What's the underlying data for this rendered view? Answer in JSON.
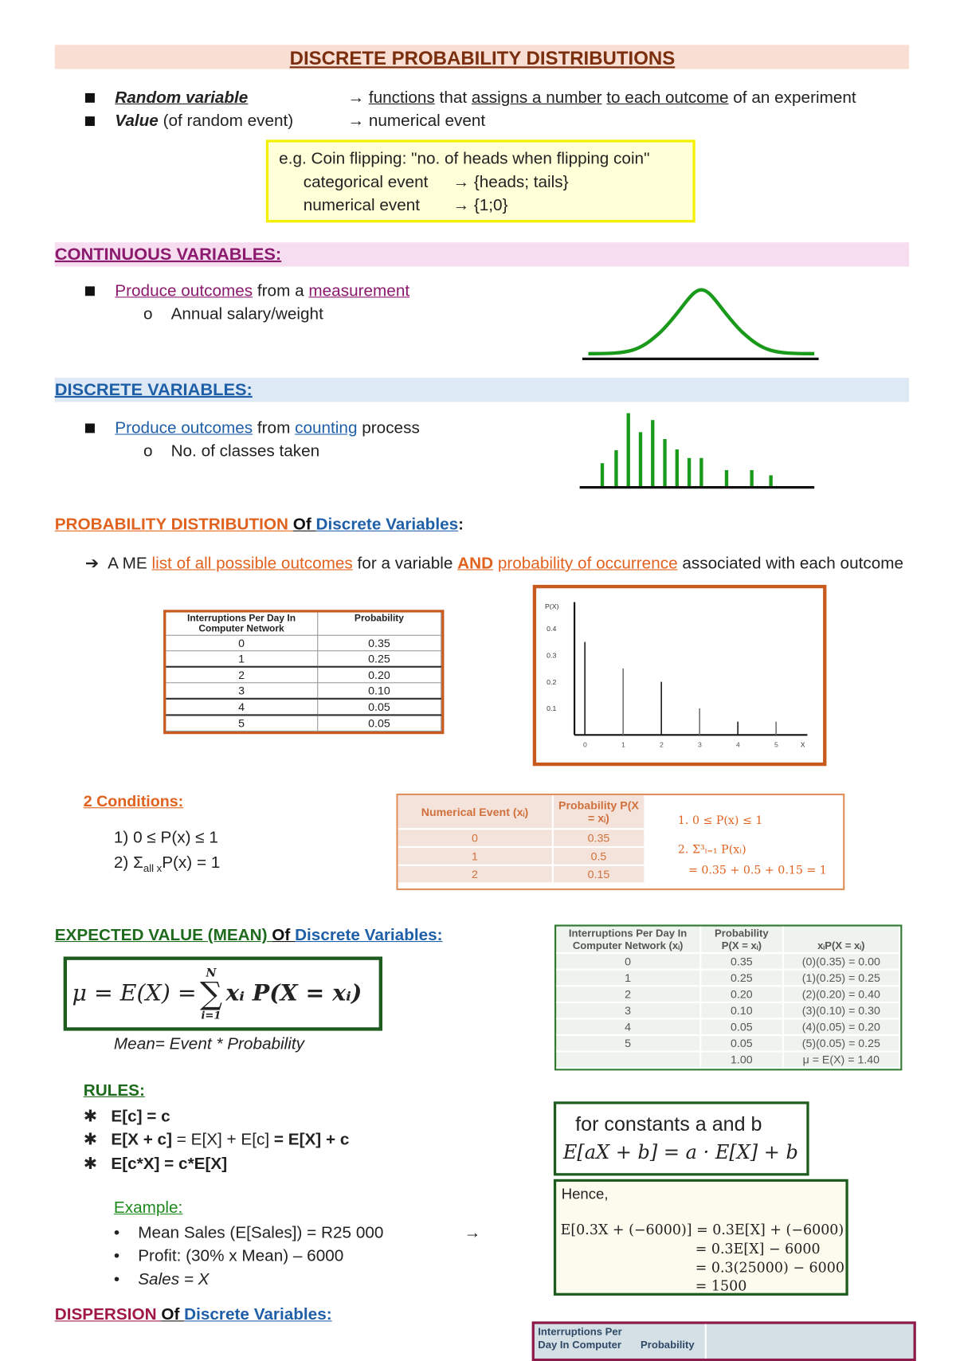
{
  "title": "DISCRETE PROBABILITY DISTRIBUTIONS",
  "intro": [
    {
      "term": "Random variable",
      "extra": "",
      "arrow": "→",
      "parts": [
        "functions",
        " that ",
        "assigns a number",
        " ",
        "to each outcome",
        " of an experiment"
      ]
    },
    {
      "term": "Value",
      "extra": " (of random event)",
      "arrow": "→",
      "desc": "numerical event"
    }
  ],
  "example_box": {
    "line1": "e.g. Coin flipping: \"no. of heads when flipping coin\"",
    "cat_label": "categorical event",
    "cat_value": "→ {heads; tails}",
    "num_label": "numerical event",
    "num_value": "→ {1;0}"
  },
  "continuous": {
    "heading": "CONTINUOUS VARIABLES:",
    "b1": "Produce outcomes",
    "b2": " from a ",
    "b3": "measurement",
    "sub": "Annual salary/weight"
  },
  "discrete": {
    "heading": "DISCRETE VARIABLES:",
    "b1": "Produce outcomes",
    "b2": " from ",
    "b3": "counting",
    "b4": " process",
    "sub": "No. of classes taken"
  },
  "prob_dist": {
    "h1": "PROBABILITY DISTRIBUTION ",
    "h2": "Of ",
    "h3": "Discrete Variables",
    "h4": ":",
    "p1": "A ME ",
    "p2": "list of all possible outcomes",
    "p3": " for a variable ",
    "p4": "AND",
    "p5": " ",
    "p6": "probability of occurrence",
    "p7": " associated with each outcome"
  },
  "table1": {
    "headers": [
      "Interruptions Per Day In Computer Network",
      "Probability"
    ],
    "rows": [
      [
        "0",
        "0.35"
      ],
      [
        "1",
        "0.25"
      ],
      [
        "2",
        "0.20"
      ],
      [
        "3",
        "0.10"
      ],
      [
        "4",
        "0.05"
      ],
      [
        "5",
        "0.05"
      ]
    ]
  },
  "chart_data": {
    "type": "bar",
    "title": "",
    "ylabel": "P(X)",
    "xlabel": "X",
    "categories": [
      "0",
      "1",
      "2",
      "3",
      "4",
      "5"
    ],
    "values": [
      0.35,
      0.25,
      0.2,
      0.1,
      0.05,
      0.05
    ],
    "yticks": [
      "0.1",
      "0.2",
      "0.3",
      "0.4"
    ],
    "ylim": [
      0,
      0.5
    ],
    "grid": false
  },
  "conditions": {
    "heading": "2 Conditions:",
    "c1": "1)   0 ≤ P(x) ≤ 1",
    "c2a": "2)   Σ",
    "c2b": "all x",
    "c2c": "P(x) = 1"
  },
  "table2": {
    "headers": [
      "Numerical Event (xᵢ)",
      "Probability P(X = xᵢ)"
    ],
    "rows": [
      [
        "0",
        "0.35"
      ],
      [
        "1",
        "0.5"
      ],
      [
        "2",
        "0.15"
      ]
    ],
    "note1": "1. 0 ≤ P(x) ≤ 1",
    "note2": "2. Σ³ᵢ₌₁ P(xᵢ)",
    "note3": "= 0.35 + 0.5 + 0.15 = 1"
  },
  "expected": {
    "h1": "EXPECTED VALUE (MEAN) ",
    "h2": "Of ",
    "h3": "Discrete Variables:",
    "formula_left": "μ = E(X) = ",
    "sum_top": "N",
    "sum_bottom": "i=1",
    "formula_right": "xᵢ P(X = xᵢ)",
    "caption": "Mean= Event * Probability"
  },
  "table3": {
    "headers": [
      "Interruptions Per Day In Computer Network (xᵢ)",
      "Probability P(X = xᵢ)",
      "xᵢP(X = xᵢ)"
    ],
    "rows": [
      [
        "0",
        "0.35",
        "(0)(0.35) = 0.00"
      ],
      [
        "1",
        "0.25",
        "(1)(0.25) = 0.25"
      ],
      [
        "2",
        "0.20",
        "(2)(0.20) = 0.40"
      ],
      [
        "3",
        "0.10",
        "(3)(0.10) = 0.30"
      ],
      [
        "4",
        "0.05",
        "(4)(0.05) = 0.20"
      ],
      [
        "5",
        "0.05",
        "(5)(0.05) = 0.25"
      ],
      [
        "",
        "1.00",
        "μ = E(X) = 1.40"
      ]
    ]
  },
  "rules": {
    "heading": "RULES:",
    "r1": "E[c] = c",
    "r2a": "E[X + c]",
    "r2b": " = E[X] + E[c] ",
    "r2c": "= E[X] + c",
    "r3": "E[c*X] = c*E[X]"
  },
  "constants_box": {
    "line1": "for constants a and b",
    "line2": "E[aX + b] = a · E[X] + b"
  },
  "example": {
    "heading": "Example:",
    "items": [
      "Mean Sales (E[Sales]) = R25 000",
      "Profit: (30% x Mean) – 6000",
      "Sales = X"
    ],
    "arrow": "→"
  },
  "hence_box": {
    "label": "Hence,",
    "l1": "E[0.3X + (−6000)] = 0.3E[X] + (−6000)",
    "l2": "= 0.3E[X] − 6000",
    "l3": "= 0.3(25000) − 6000",
    "l4": "= 1500"
  },
  "dispersion": {
    "h1": "DISPERSION ",
    "h2": "Of ",
    "h3": "Discrete Variables:"
  },
  "table4": {
    "h1": "Interruptions Per Day In Computer",
    "h2": "Probability"
  },
  "colors": {
    "title_band": "#f9dfd3",
    "title_text": "#7a2e0e",
    "continuous": "#8b1a6e",
    "continuous_band": "#f6ddef",
    "discrete": "#1f5fa8",
    "discrete_band": "#dde9f5",
    "orange": "#e0621e",
    "green": "#1e6b1e",
    "box_orange": "#c85a1e",
    "curve_green": "#1a9a1a",
    "dispersion": "#a01848"
  }
}
